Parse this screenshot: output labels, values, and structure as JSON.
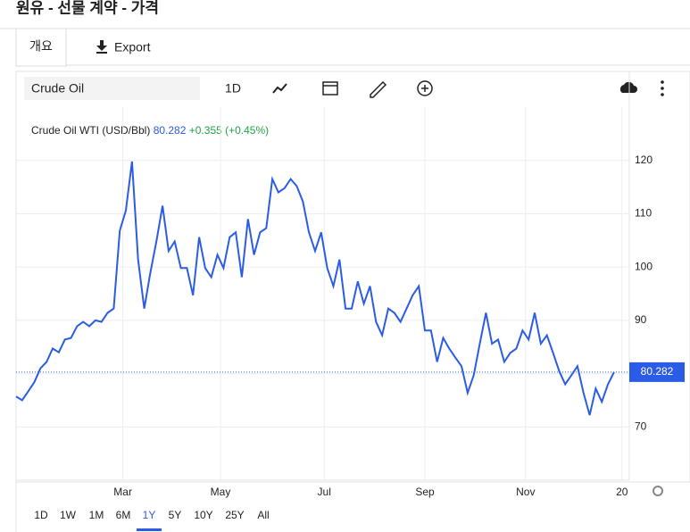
{
  "header": {
    "title": "원유 - 선물 계약 - 가격"
  },
  "tabs": [
    "개요",
    "Export"
  ],
  "toolbar": {
    "symbol": "Crude Oil",
    "interval": "1D"
  },
  "chart_data": {
    "type": "line",
    "series": [
      {
        "name": "Crude Oil WTI (USD/Bbl)",
        "color": "#2b5ce6",
        "values": [
          75.7,
          75,
          76.7,
          78.4,
          81,
          82.2,
          84.7,
          84,
          86.4,
          86.7,
          88.9,
          89.7,
          88.9,
          90,
          89.7,
          91.4,
          92.2,
          106.8,
          110.6,
          119.8,
          101.4,
          92.2,
          98.9,
          104.8,
          111.5,
          103,
          104.8,
          99.8,
          99.8,
          94.7,
          105.6,
          99.8,
          98.1,
          102.3,
          99.8,
          105.6,
          106.5,
          98.1,
          109,
          102.3,
          106.5,
          107.3,
          116.5,
          114,
          114.8,
          116.5,
          115.2,
          112.3,
          106.5,
          103,
          106.5,
          99.8,
          96.4,
          101.4,
          92.2,
          92.2,
          97.3,
          93.1,
          96.4,
          89.7,
          87.2,
          92.2,
          91.4,
          89.7,
          92.2,
          94.7,
          96.4,
          88.1,
          88.1,
          82.2,
          86.7,
          84.7,
          83,
          81.4,
          76.4,
          79.7,
          85.6,
          91.4,
          85.6,
          86.4,
          82.2,
          83.9,
          84.7,
          88.1,
          86.4,
          91.4,
          85.6,
          87.2,
          83.9,
          80.5,
          78,
          79.7,
          81.4,
          76.4,
          72.2,
          77.2,
          74.7,
          78,
          80.282
        ]
      }
    ],
    "last_value": 80.282,
    "change": "+0.355 (+0.45%)",
    "xlim": [
      0,
      100.5
    ],
    "xticks": [
      {
        "value": 17.5,
        "label": "Mar"
      },
      {
        "value": 33.5,
        "label": "May"
      },
      {
        "value": 50.5,
        "label": "Jul"
      },
      {
        "value": 67,
        "label": "Sep"
      },
      {
        "value": 83.5,
        "label": "Nov"
      },
      {
        "value": 99.3,
        "label": "20"
      }
    ],
    "ylim": [
      60,
      130
    ],
    "yticks": [
      70,
      80,
      90,
      100,
      110,
      120
    ],
    "grid": true
  },
  "ranges": [
    "1D",
    "1W",
    "1M",
    "6M",
    "1Y",
    "5Y",
    "10Y",
    "25Y",
    "All"
  ],
  "selected_range": "1Y"
}
